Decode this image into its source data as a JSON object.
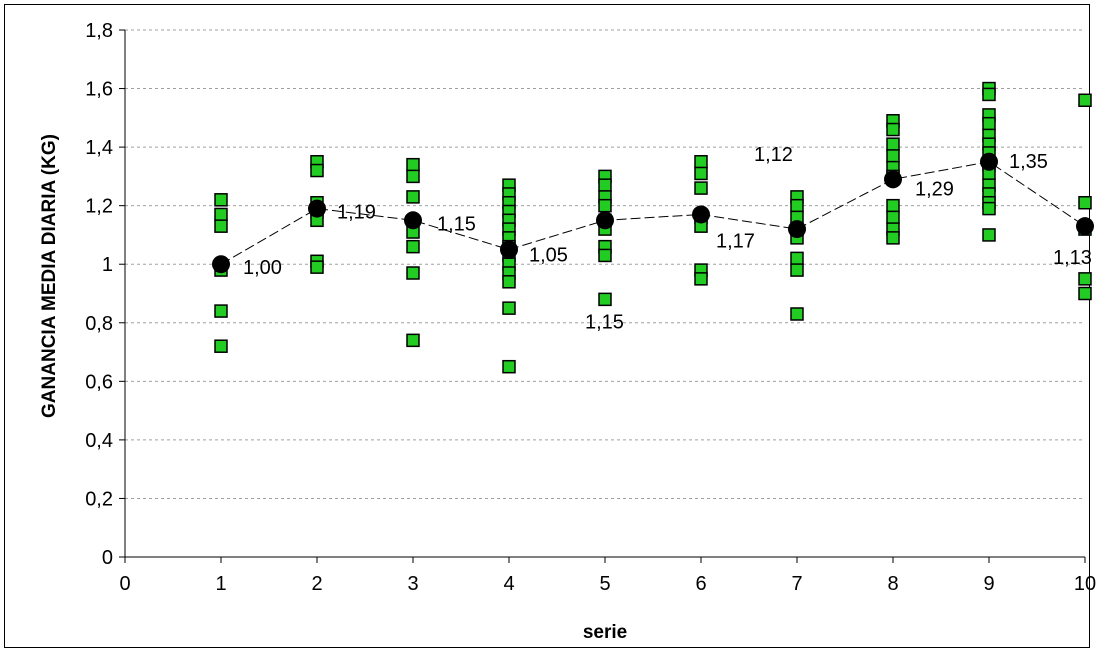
{
  "chart_data": {
    "type": "scatter",
    "title": "",
    "xlabel": "serie",
    "ylabel": "GANANCIA MEDIA DIARIA (KG)",
    "xlim": [
      0,
      10
    ],
    "ylim": [
      0,
      1.8
    ],
    "x_ticks": [
      "0",
      "1",
      "2",
      "3",
      "4",
      "5",
      "6",
      "7",
      "8",
      "9",
      "10"
    ],
    "y_ticks": [
      "0",
      "0,2",
      "0,4",
      "0,6",
      "0,8",
      "1",
      "1,2",
      "1,4",
      "1,6",
      "1,8"
    ],
    "grid": "horizontal dashed",
    "series": [
      {
        "marker": "square",
        "color": "#22cc22",
        "points": [
          [
            1,
            1.22
          ],
          [
            1,
            1.17
          ],
          [
            1,
            1.13
          ],
          [
            1,
            0.98
          ],
          [
            1,
            0.84
          ],
          [
            1,
            0.72
          ],
          [
            2,
            1.35
          ],
          [
            2,
            1.32
          ],
          [
            2,
            1.21
          ],
          [
            2,
            1.18
          ],
          [
            2,
            1.15
          ],
          [
            2,
            1.01
          ],
          [
            2,
            0.99
          ],
          [
            3,
            1.34
          ],
          [
            3,
            1.3
          ],
          [
            3,
            1.23
          ],
          [
            3,
            1.11
          ],
          [
            3,
            1.06
          ],
          [
            3,
            0.97
          ],
          [
            3,
            0.74
          ],
          [
            4,
            1.27
          ],
          [
            4,
            1.24
          ],
          [
            4,
            1.21
          ],
          [
            4,
            1.18
          ],
          [
            4,
            1.15
          ],
          [
            4,
            1.12
          ],
          [
            4,
            1.09
          ],
          [
            4,
            1.06
          ],
          [
            4,
            1.03
          ],
          [
            4,
            1.0
          ],
          [
            4,
            0.97
          ],
          [
            4,
            0.94
          ],
          [
            4,
            0.85
          ],
          [
            4,
            0.65
          ],
          [
            5,
            1.3
          ],
          [
            5,
            1.27
          ],
          [
            5,
            1.23
          ],
          [
            5,
            1.2
          ],
          [
            5,
            1.15
          ],
          [
            5,
            1.12
          ],
          [
            5,
            1.06
          ],
          [
            5,
            1.03
          ],
          [
            5,
            0.88
          ],
          [
            6,
            1.35
          ],
          [
            6,
            1.31
          ],
          [
            6,
            1.26
          ],
          [
            6,
            1.16
          ],
          [
            6,
            1.13
          ],
          [
            6,
            0.98
          ],
          [
            6,
            0.95
          ],
          [
            7,
            1.23
          ],
          [
            7,
            1.2
          ],
          [
            7,
            1.16
          ],
          [
            7,
            1.12
          ],
          [
            7,
            1.09
          ],
          [
            7,
            1.02
          ],
          [
            7,
            0.98
          ],
          [
            7,
            0.83
          ],
          [
            8,
            1.49
          ],
          [
            8,
            1.46
          ],
          [
            8,
            1.41
          ],
          [
            8,
            1.37
          ],
          [
            8,
            1.33
          ],
          [
            8,
            1.3
          ],
          [
            8,
            1.2
          ],
          [
            8,
            1.16
          ],
          [
            8,
            1.12
          ],
          [
            8,
            1.09
          ],
          [
            9,
            1.6
          ],
          [
            9,
            1.58
          ],
          [
            9,
            1.51
          ],
          [
            9,
            1.48
          ],
          [
            9,
            1.44
          ],
          [
            9,
            1.41
          ],
          [
            9,
            1.38
          ],
          [
            9,
            1.34
          ],
          [
            9,
            1.31
          ],
          [
            9,
            1.27
          ],
          [
            9,
            1.24
          ],
          [
            9,
            1.21
          ],
          [
            9,
            1.19
          ],
          [
            9,
            1.1
          ],
          [
            10,
            1.56
          ],
          [
            10,
            1.21
          ],
          [
            10,
            1.12
          ],
          [
            10,
            0.95
          ],
          [
            10,
            0.9
          ]
        ]
      },
      {
        "marker": "circle",
        "color": "#000000",
        "line": "dashed",
        "x": [
          1,
          2,
          3,
          4,
          5,
          6,
          7,
          8,
          9,
          10
        ],
        "values": [
          1.0,
          1.19,
          1.15,
          1.05,
          1.15,
          1.17,
          1.12,
          1.29,
          1.35,
          1.13
        ],
        "labels": [
          "1,00",
          "1,19",
          "1,15",
          "1,05",
          "1,15",
          "1,17",
          "1,12",
          "1,29",
          "1,35",
          "1,13"
        ]
      }
    ]
  }
}
